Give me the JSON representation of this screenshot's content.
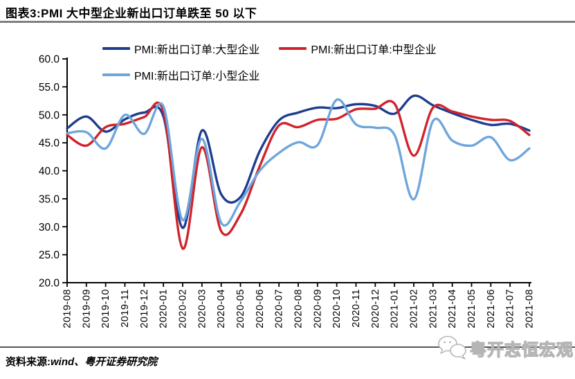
{
  "title": {
    "text": "图表3:PMI 大中型企业新出口订单跌至 50 以下"
  },
  "source": {
    "prefix": "资料来源:",
    "wind": "wind",
    "rest": "、粤开证券研究院"
  },
  "watermark": {
    "text": "粤开志恒宏观"
  },
  "chart_data": {
    "type": "line",
    "title": "图表3:PMI 大中型企业新出口订单跌至 50 以下",
    "categories": [
      "2019-08",
      "2019-09",
      "2019-10",
      "2019-11",
      "2019-12",
      "2020-01",
      "2020-02",
      "2020-03",
      "2020-04",
      "2020-05",
      "2020-06",
      "2020-07",
      "2020-08",
      "2020-09",
      "2020-10",
      "2020-11",
      "2020-12",
      "2021-01",
      "2021-02",
      "2021-03",
      "2021-04",
      "2021-05",
      "2021-06",
      "2021-07",
      "2021-08"
    ],
    "series": [
      {
        "name": "PMI:新出口订单:大型企业",
        "color": "#1e3d8f",
        "values": [
          47.6,
          49.7,
          47.0,
          49.2,
          50.4,
          49.7,
          29.8,
          47.2,
          35.8,
          35.3,
          43.5,
          49.0,
          50.4,
          51.3,
          51.2,
          51.9,
          51.6,
          50.2,
          53.4,
          51.7,
          50.3,
          49.1,
          48.2,
          48.4,
          47.2
        ]
      },
      {
        "name": "PMI:新出口订单:中型企业",
        "color": "#d1232b",
        "values": [
          46.4,
          44.5,
          47.8,
          48.4,
          49.6,
          50.6,
          26.1,
          44.2,
          29.2,
          32.2,
          40.8,
          48.1,
          47.8,
          49.1,
          49.3,
          51.0,
          51.1,
          52.0,
          42.7,
          51.3,
          50.6,
          49.7,
          49.1,
          48.9,
          46.4
        ]
      },
      {
        "name": "PMI:新出口订单:小型企业",
        "color": "#6ea6dc",
        "values": [
          46.7,
          46.9,
          44.0,
          50.0,
          46.6,
          51.5,
          31.2,
          45.7,
          30.7,
          34.5,
          40.0,
          43.2,
          45.1,
          44.6,
          52.7,
          48.3,
          47.7,
          46.4,
          34.9,
          48.9,
          45.4,
          44.5,
          46.0,
          41.9,
          44.0
        ]
      }
    ],
    "ylim": [
      20,
      60
    ],
    "yticks": [
      60,
      55,
      50,
      45,
      40,
      35,
      30,
      25,
      20
    ],
    "xlabel": "",
    "ylabel": "",
    "grid": false,
    "legend_position": "top"
  }
}
